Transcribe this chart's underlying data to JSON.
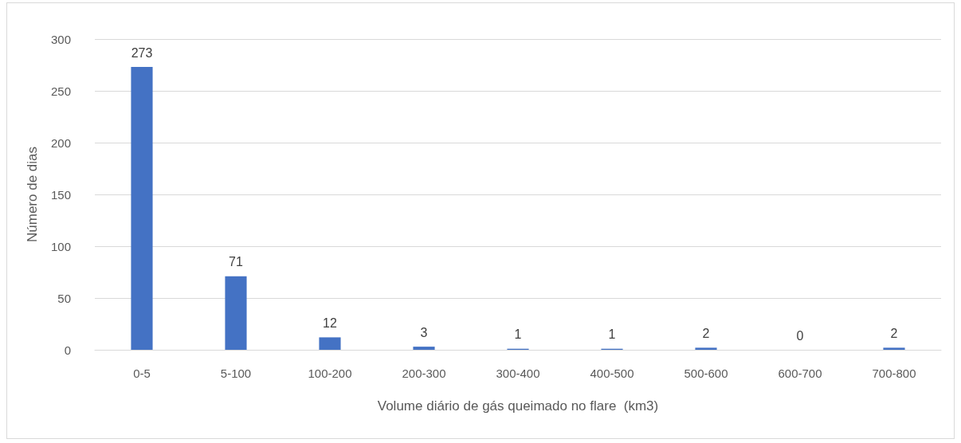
{
  "chart_data": {
    "type": "bar",
    "xlabel": "Volume diário de gás queimado no flare  (km3)",
    "ylabel": "Número de dias",
    "categories": [
      "0-5",
      "5-100",
      "100-200",
      "200-300",
      "300-400",
      "400-500",
      "500-600",
      "600-700",
      "700-800"
    ],
    "values": [
      273,
      71,
      12,
      3,
      1,
      1,
      2,
      0,
      2
    ],
    "color": "#4472c4",
    "ylim": [
      0,
      300
    ],
    "yticks": [
      0,
      50,
      100,
      150,
      200,
      250,
      300
    ],
    "grid": "y",
    "data_labels": true
  }
}
